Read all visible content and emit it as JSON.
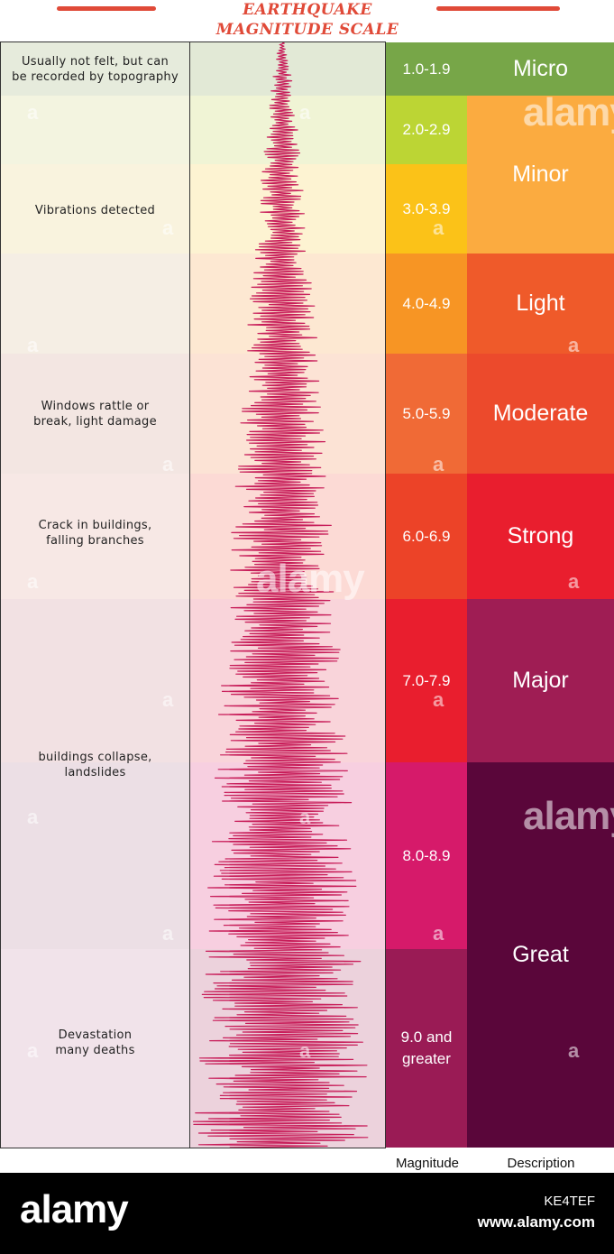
{
  "title": "EARTHQUAKE MAGNITUDE SCALE",
  "colors": {
    "title": "#e04a38",
    "waveform": "#c81e5a"
  },
  "effects": [
    {
      "text": "Usually not felt, but can\nbe recorded by topography"
    },
    {
      "text": "Vibrations detected"
    },
    {
      "text": "Windows rattle or\nbreak, light damage"
    },
    {
      "text": "Crack in buildings,\nfalling branches"
    },
    {
      "text": "buildings collapse,\nlandslides"
    },
    {
      "text": "Devastation\nmany deaths"
    }
  ],
  "magnitudes": [
    {
      "label": "1.0-1.9",
      "color": "#77a648"
    },
    {
      "label": "2.0-2.9",
      "color": "#bcd534"
    },
    {
      "label": "3.0-3.9",
      "color": "#fbc218"
    },
    {
      "label": "4.0-4.9",
      "color": "#f79524"
    },
    {
      "label": "5.0-5.9",
      "color": "#f06a36"
    },
    {
      "label": "6.0-6.9",
      "color": "#ec4328"
    },
    {
      "label": "7.0-7.9",
      "color": "#e91e2e"
    },
    {
      "label": "8.0-8.9",
      "color": "#d61a6a"
    },
    {
      "label": "9.0 and\ngreater",
      "color": "#9a1b55"
    }
  ],
  "descriptions": [
    {
      "label": "Micro",
      "color": "#77a648"
    },
    {
      "label": "Minor",
      "color": "#fbab40"
    },
    {
      "label": "Light",
      "color": "#ef5a2a"
    },
    {
      "label": "Moderate",
      "color": "#ec4a2c"
    },
    {
      "label": "Strong",
      "color": "#e91e2e"
    },
    {
      "label": "Major",
      "color": "#9f1d54"
    },
    {
      "label": "Great",
      "color": "#5a063a"
    }
  ],
  "column_labels": {
    "magnitude": "Magnitude",
    "description": "Description"
  },
  "footer": {
    "logo": "alamy",
    "image_id": "KE4TEF",
    "url": "www.alamy.com"
  },
  "watermark": {
    "big": "alamy",
    "small": "a"
  }
}
